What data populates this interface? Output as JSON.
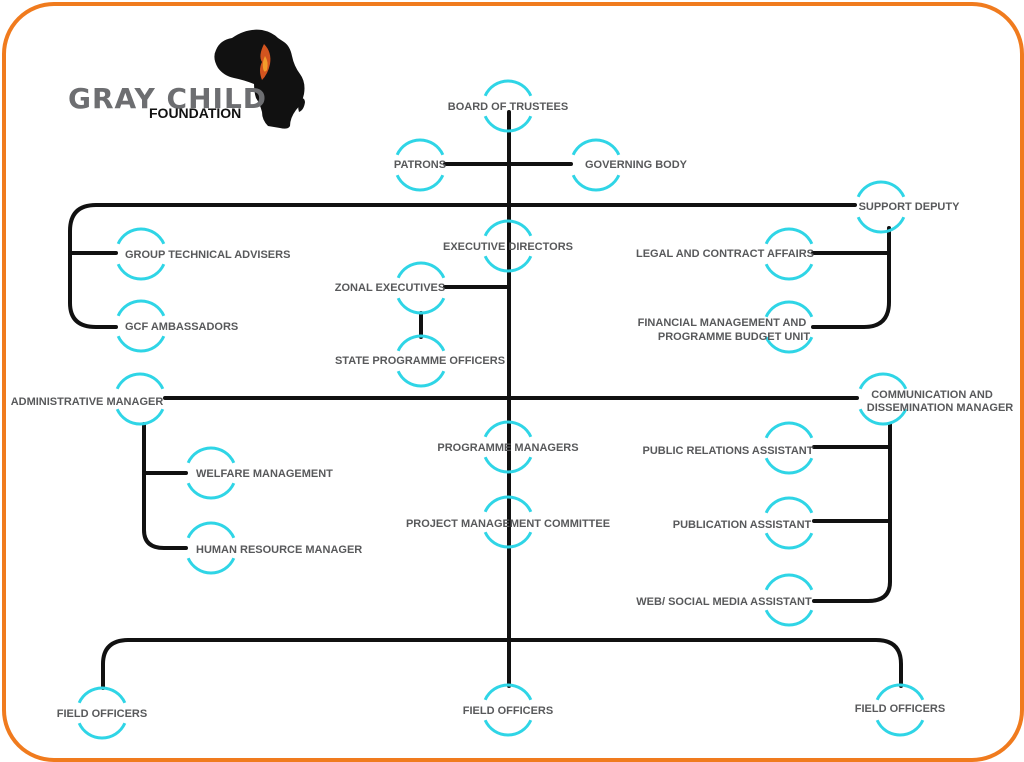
{
  "logo": {
    "name": "GRAY CHILD",
    "subtitle": "FOUNDATION"
  },
  "colors": {
    "frame": "#f07b1e",
    "circle": "#2fd5e6",
    "line": "#111111",
    "label": "#58595b"
  },
  "nodes": {
    "board_of_trustees": {
      "label": "BOARD OF TRUSTEES"
    },
    "patrons": {
      "label": "PATRONS"
    },
    "governing_body": {
      "label": "GOVERNING BODY"
    },
    "support_deputy": {
      "label": "SUPPORT DEPUTY"
    },
    "executive_directors": {
      "label": "EXECUTIVE DIRECTORS"
    },
    "group_technical_advisers": {
      "label": "GROUP TECHNICAL ADVISERS"
    },
    "gcf_ambassadors": {
      "label": "GCF AMBASSADORS"
    },
    "zonal_executives": {
      "label": "ZONAL EXECUTIVES"
    },
    "state_programme_officers": {
      "label": "STATE PROGRAMME OFFICERS"
    },
    "legal_and_contract_affairs": {
      "label": "LEGAL AND CONTRACT AFFAIRS"
    },
    "financial_management": {
      "label_line1": "FINANCIAL MANAGEMENT AND",
      "label_line2": "PROGRAMME BUDGET UNIT"
    },
    "administrative_manager": {
      "label": "ADMINISTRATIVE MANAGER"
    },
    "communication_manager": {
      "label_line1": "COMMUNICATION AND",
      "label_line2": "DISSEMINATION MANAGER"
    },
    "welfare_management": {
      "label": "WELFARE MANAGEMENT"
    },
    "human_resource_manager": {
      "label": "HUMAN RESOURCE MANAGER"
    },
    "programme_managers": {
      "label": "PROGRAMME MANAGERS"
    },
    "project_management_committee": {
      "label": "PROJECT MANAGEMENT COMMITTEE"
    },
    "public_relations_assistant": {
      "label": "PUBLIC RELATIONS ASSISTANT"
    },
    "publication_assistant": {
      "label": "PUBLICATION ASSISTANT"
    },
    "web_social_media_assistant": {
      "label": "WEB/ SOCIAL MEDIA ASSISTANT"
    },
    "field_officers_left": {
      "label": "FIELD OFFICERS"
    },
    "field_officers_center": {
      "label": "FIELD OFFICERS"
    },
    "field_officers_right": {
      "label": "FIELD OFFICERS"
    }
  }
}
